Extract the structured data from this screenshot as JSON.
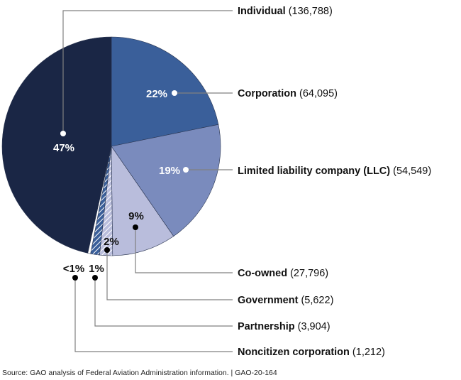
{
  "chart_data": {
    "type": "pie",
    "slices": [
      {
        "name": "Corporation",
        "value": 64095,
        "value_label": "(64,095)",
        "pct_label": "22%",
        "color": "#3a5f9a",
        "pattern": "solid"
      },
      {
        "name": "Limited liability company (LLC)",
        "value": 54549,
        "value_label": "(54,549)",
        "pct_label": "19%",
        "color": "#7a8bbd",
        "pattern": "solid"
      },
      {
        "name": "Co-owned",
        "value": 27796,
        "value_label": "(27,796)",
        "pct_label": "9%",
        "color": "#b9bddc",
        "pattern": "solid"
      },
      {
        "name": "Government",
        "value": 5622,
        "value_label": "(5,622)",
        "pct_label": "2%",
        "color": "#b9bddc",
        "pattern": "hatched"
      },
      {
        "name": "Partnership",
        "value": 3904,
        "value_label": "(3,904)",
        "pct_label": "1%",
        "color": "#3a5f9a",
        "pattern": "hatched"
      },
      {
        "name": "Noncitizen corporation",
        "value": 1212,
        "value_label": "(1,212)",
        "pct_label": "<1%",
        "color": "#ffffff",
        "pattern": "solid"
      },
      {
        "name": "Individual",
        "value": 136788,
        "value_label": "(136,788)",
        "pct_label": "47%",
        "color": "#1a2645",
        "pattern": "solid"
      }
    ],
    "start_angle": "top",
    "direction": "clockwise"
  },
  "source": "Source: GAO analysis of Federal Aviation Administration information.  |  GAO-20-164"
}
